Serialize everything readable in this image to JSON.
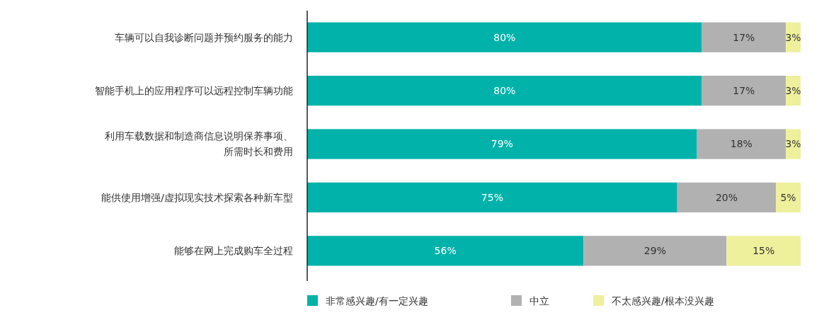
{
  "chart_data": {
    "type": "bar",
    "orientation": "horizontal",
    "stacked": true,
    "categories": [
      "车辆可以自我诊断问题并预约服务的能力",
      "智能手机上的应用程序可以远程控制车辆功能",
      "利用车载数据和制造商信息说明保养事项、所需时长和费用",
      "能供使用增强/虚拟现实技术探索各种新车型",
      "能够在网上完成购车全过程"
    ],
    "series": [
      {
        "name": "非常感兴趣/有一定兴趣",
        "color": "#00b2a9",
        "values": [
          80,
          80,
          79,
          75,
          56
        ],
        "value_labels": [
          "80%",
          "80%",
          "79%",
          "75%",
          "56%"
        ]
      },
      {
        "name": "中立",
        "color": "#b1b1b1",
        "values": [
          17,
          17,
          18,
          20,
          29
        ],
        "value_labels": [
          "17%",
          "17%",
          "18%",
          "20%",
          "29%"
        ]
      },
      {
        "name": "不太感兴趣/根本没兴趣",
        "color": "#eef09c",
        "values": [
          3,
          3,
          3,
          5,
          15
        ],
        "value_labels": [
          "3%",
          "3%",
          "3%",
          "5%",
          "15%"
        ]
      }
    ],
    "xlim": [
      0,
      100
    ],
    "tick_labels": "y",
    "legend": "bottom",
    "grid": false
  }
}
